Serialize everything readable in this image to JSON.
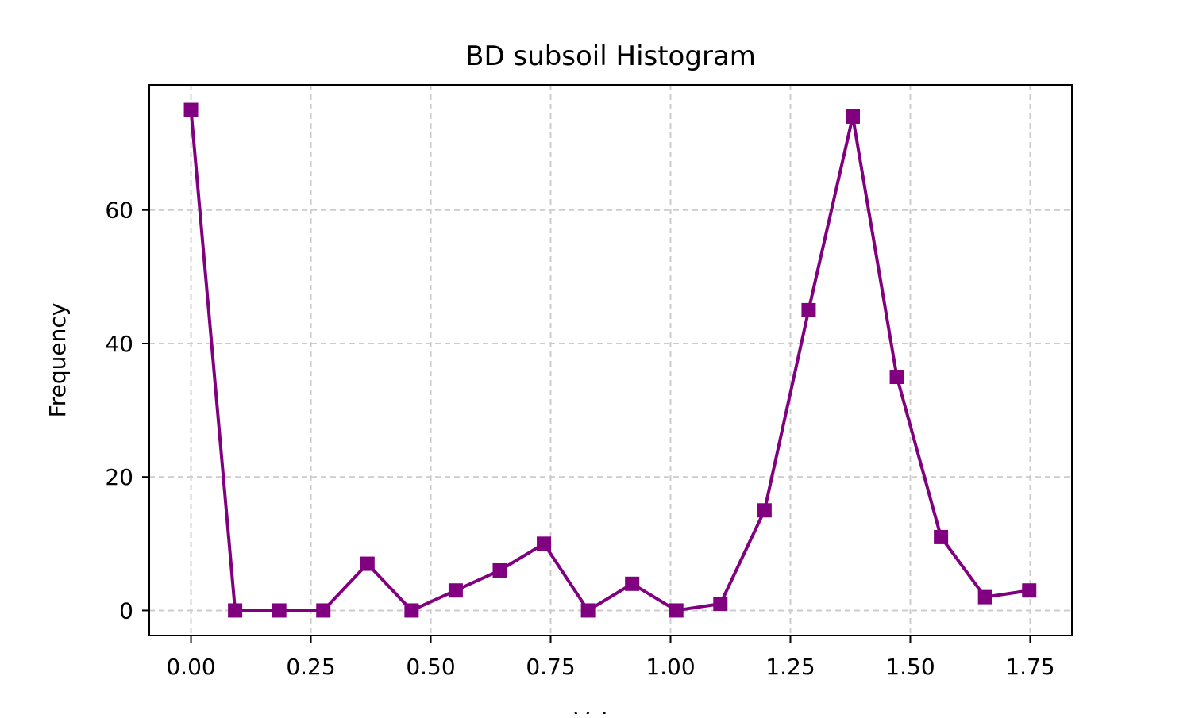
{
  "chart_data": {
    "type": "line",
    "title": "BD subsoil Histogram",
    "xlabel": "Values",
    "ylabel": "Frequency",
    "xlim": [
      -0.087,
      1.837
    ],
    "ylim": [
      -3.75,
      78.75
    ],
    "xticks": [
      0.0,
      0.25,
      0.5,
      0.75,
      1.0,
      1.25,
      1.5,
      1.75
    ],
    "xtick_labels": [
      "0.00",
      "0.25",
      "0.50",
      "0.75",
      "1.00",
      "1.25",
      "1.50",
      "1.75"
    ],
    "yticks": [
      0,
      20,
      40,
      60
    ],
    "ytick_labels": [
      "0",
      "20",
      "40",
      "60"
    ],
    "grid": true,
    "marker": "square",
    "colors": {
      "series": "#800080",
      "grid": "#cccccc",
      "axes": "#000000"
    },
    "series": [
      {
        "x": [
          0.0,
          0.092,
          0.184,
          0.276,
          0.368,
          0.46,
          0.552,
          0.644,
          0.736,
          0.828,
          0.92,
          1.012,
          1.104,
          1.196,
          1.288,
          1.38,
          1.472,
          1.564,
          1.656,
          1.748
        ],
        "y": [
          75,
          0,
          0,
          0,
          7,
          0,
          3,
          6,
          10,
          0,
          4,
          0,
          1,
          15,
          45,
          74,
          35,
          11,
          2,
          3
        ]
      }
    ]
  }
}
